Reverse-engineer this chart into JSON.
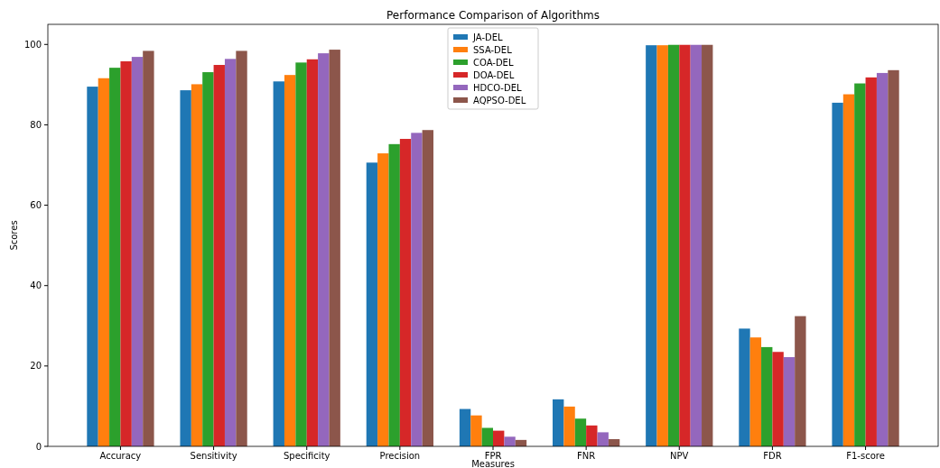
{
  "chart_data": {
    "type": "bar",
    "title": "Performance Comparison of Algorithms",
    "xlabel": "Measures",
    "ylabel": "Scores",
    "categories": [
      "Accuracy",
      "Sensitivity",
      "Specificity",
      "Precision",
      "FPR",
      "FNR",
      "NPV",
      "FDR",
      "F1-score"
    ],
    "series": [
      {
        "name": "JA-DEL",
        "color": "#1f77b4",
        "values": [
          89.5,
          88.6,
          90.8,
          70.6,
          9.3,
          11.7,
          99.8,
          29.3,
          85.5
        ]
      },
      {
        "name": "SSA-DEL",
        "color": "#ff7f0e",
        "values": [
          91.6,
          90.1,
          92.4,
          72.9,
          7.7,
          9.9,
          99.8,
          27.1,
          87.6
        ]
      },
      {
        "name": "COA-DEL",
        "color": "#2ca02c",
        "values": [
          94.2,
          93.1,
          95.5,
          75.2,
          4.6,
          6.9,
          99.9,
          24.7,
          90.3
        ]
      },
      {
        "name": "DOA-DEL",
        "color": "#d62728",
        "values": [
          95.8,
          94.9,
          96.3,
          76.5,
          3.9,
          5.2,
          99.9,
          23.5,
          91.8
        ]
      },
      {
        "name": "HDCO-DEL",
        "color": "#9467bd",
        "values": [
          96.9,
          96.4,
          97.8,
          78.0,
          2.4,
          3.5,
          99.9,
          22.2,
          92.9
        ]
      },
      {
        "name": "AQPSO-DEL",
        "color": "#8c564b",
        "values": [
          98.4,
          98.4,
          98.7,
          78.7,
          1.6,
          1.8,
          99.9,
          32.4,
          93.6
        ]
      }
    ],
    "ylim": [
      0,
      105
    ],
    "yticks": [
      0,
      20,
      40,
      60,
      80,
      100
    ],
    "grid": false,
    "legend": "top"
  }
}
